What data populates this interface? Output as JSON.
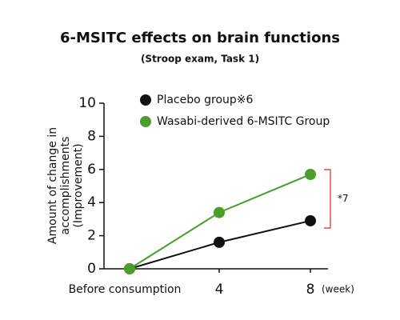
{
  "chart_data": {
    "type": "line",
    "title": "6-MSITC effects on brain functions",
    "subtitle": "(Stroop exam, Task 1)",
    "y_label": [
      "Amount of change in",
      "accomplishments",
      "(Improvement)"
    ],
    "x_label": "(week)",
    "categories": [
      "Before consumption",
      "4",
      "8"
    ],
    "series": [
      {
        "name": "Placebo group※6",
        "color": "#111111",
        "values": [
          0,
          1.6,
          2.9
        ]
      },
      {
        "name": "Wasabi-derived 6-MSITC Group",
        "color": "#4a9e2b",
        "values": [
          0,
          3.4,
          5.7
        ]
      }
    ],
    "ylim": [
      0,
      10
    ],
    "yticks": [
      0,
      2,
      4,
      6,
      8,
      10
    ],
    "annotation": {
      "text": "*7",
      "color": "#d9262b"
    }
  }
}
